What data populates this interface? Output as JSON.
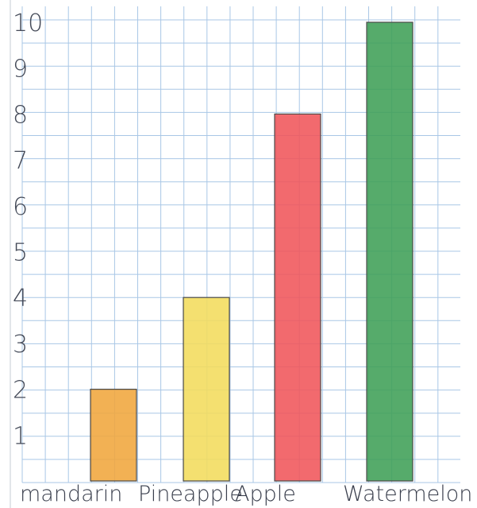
{
  "chart_data": {
    "type": "bar",
    "title": "",
    "xlabel": "",
    "ylabel": "",
    "categories": [
      "mandarin",
      "Pineapple",
      "Apple",
      "Watermelon"
    ],
    "values": [
      2,
      4,
      8,
      10
    ],
    "ylim": [
      0,
      10
    ],
    "yticks": [
      "1",
      "2",
      "3",
      "4",
      "5",
      "6",
      "7",
      "8",
      "9",
      "10"
    ],
    "colors": [
      "#f0a63c",
      "#f3dc5c",
      "#f0555a",
      "#3f9f56"
    ],
    "grid": true,
    "legend": "none"
  }
}
